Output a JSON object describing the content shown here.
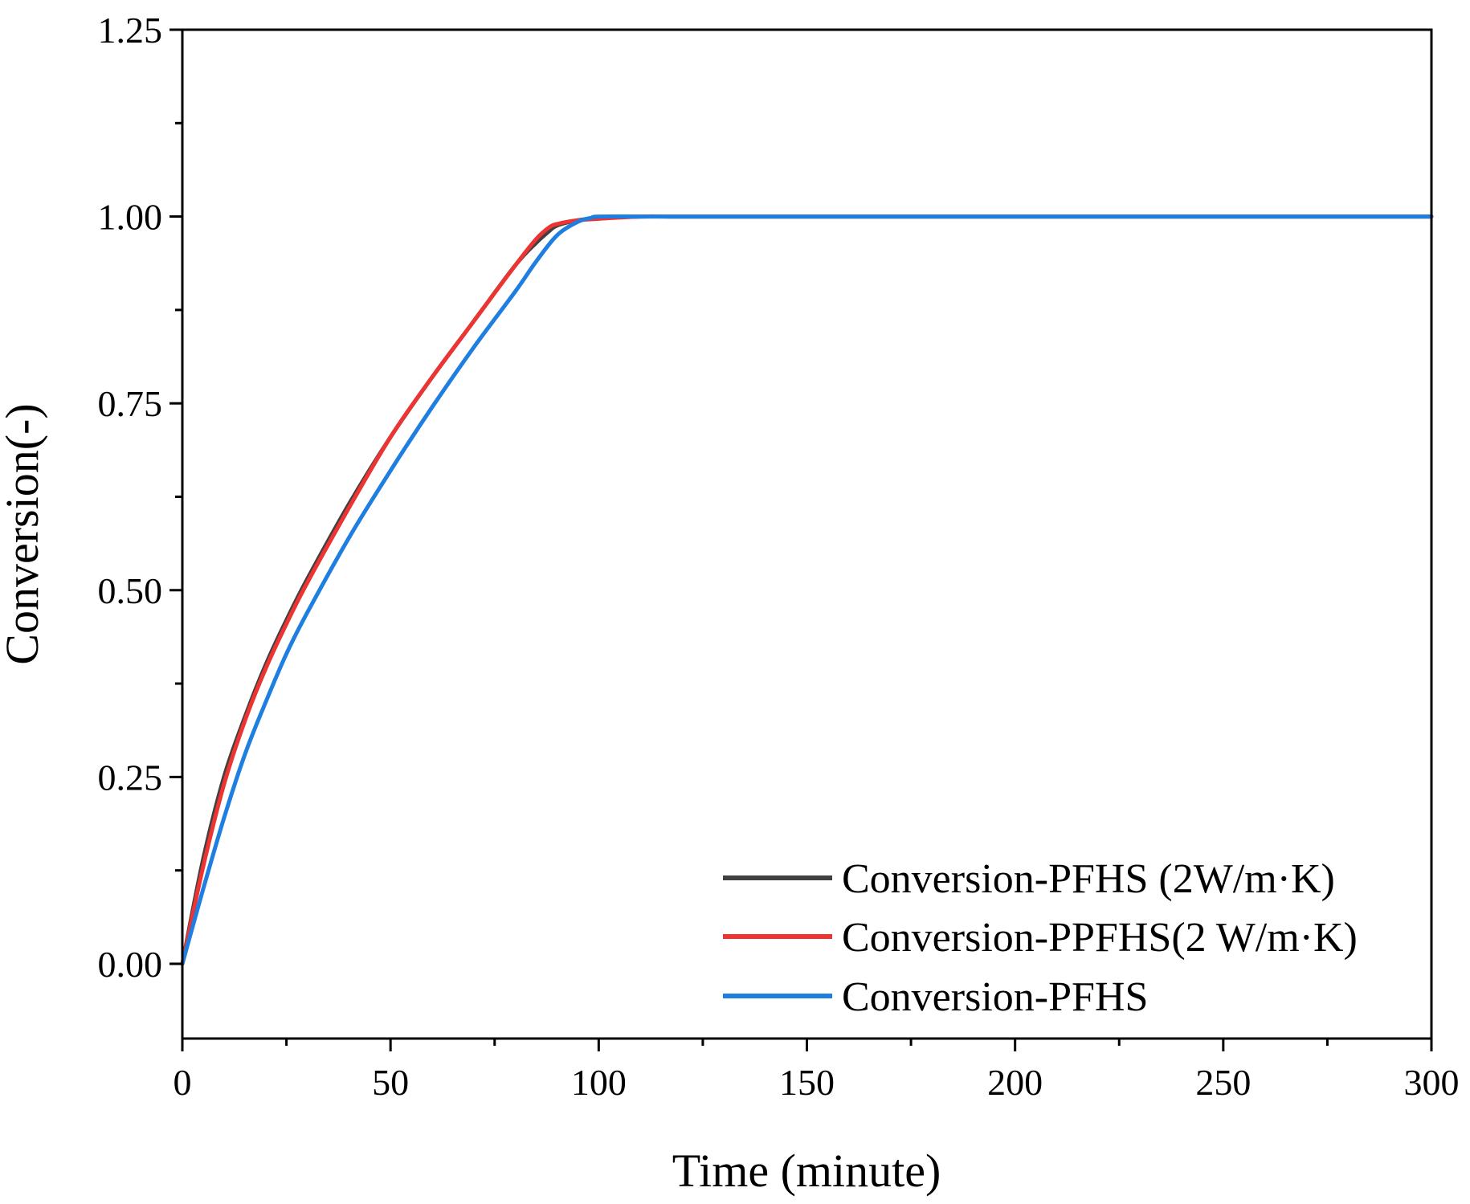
{
  "chart_data": {
    "type": "line",
    "title": "",
    "xlabel": "Time (minute)",
    "ylabel": "Conversion(-)",
    "xlim": [
      0,
      300
    ],
    "ylim": [
      -0.1,
      1.25
    ],
    "xticks": [
      0,
      50,
      100,
      150,
      200,
      250,
      300
    ],
    "xtick_labels": [
      "0",
      "50",
      "100",
      "150",
      "200",
      "250",
      "300"
    ],
    "yticks": [
      0.0,
      0.25,
      0.5,
      0.75,
      1.0,
      1.25
    ],
    "ytick_labels": [
      "0.00",
      "0.25",
      "0.50",
      "0.75",
      "1.00",
      "1.25"
    ],
    "grid": false,
    "legend_position": "bottom-right",
    "series": [
      {
        "name": "Conversion-PFHS (2W/m·K)",
        "color": "#404040",
        "x": [
          0,
          5,
          10,
          15,
          20,
          25,
          30,
          40,
          50,
          60,
          70,
          80,
          85,
          88,
          90,
          95,
          100,
          110,
          120,
          150,
          200,
          250,
          300
        ],
        "y": [
          0,
          0.14,
          0.25,
          0.33,
          0.4,
          0.46,
          0.515,
          0.615,
          0.705,
          0.785,
          0.86,
          0.935,
          0.965,
          0.98,
          0.988,
          0.995,
          0.998,
          1.0,
          1.0,
          1.0,
          1.0,
          1.0,
          1.0
        ]
      },
      {
        "name": "Conversion-PPFHS(2 W/m·K)",
        "color": "#ee3333",
        "x": [
          0,
          5,
          10,
          15,
          20,
          25,
          30,
          40,
          50,
          60,
          70,
          80,
          85,
          88,
          90,
          95,
          100,
          110,
          120,
          150,
          200,
          250,
          300
        ],
        "y": [
          0,
          0.13,
          0.24,
          0.325,
          0.395,
          0.455,
          0.51,
          0.61,
          0.705,
          0.785,
          0.86,
          0.935,
          0.97,
          0.985,
          0.99,
          0.995,
          0.997,
          1.0,
          1.0,
          1.0,
          1.0,
          1.0,
          1.0
        ]
      },
      {
        "name": "Conversion-PFHS",
        "color": "#1f7fe0",
        "x": [
          0,
          5,
          10,
          15,
          20,
          25,
          30,
          40,
          50,
          60,
          70,
          80,
          85,
          90,
          95,
          98,
          100,
          110,
          120,
          150,
          200,
          250,
          300
        ],
        "y": [
          0,
          0.1,
          0.195,
          0.28,
          0.35,
          0.415,
          0.47,
          0.57,
          0.66,
          0.745,
          0.825,
          0.9,
          0.94,
          0.975,
          0.993,
          0.998,
          1.0,
          1.0,
          1.0,
          1.0,
          1.0,
          1.0,
          1.0
        ]
      }
    ]
  }
}
